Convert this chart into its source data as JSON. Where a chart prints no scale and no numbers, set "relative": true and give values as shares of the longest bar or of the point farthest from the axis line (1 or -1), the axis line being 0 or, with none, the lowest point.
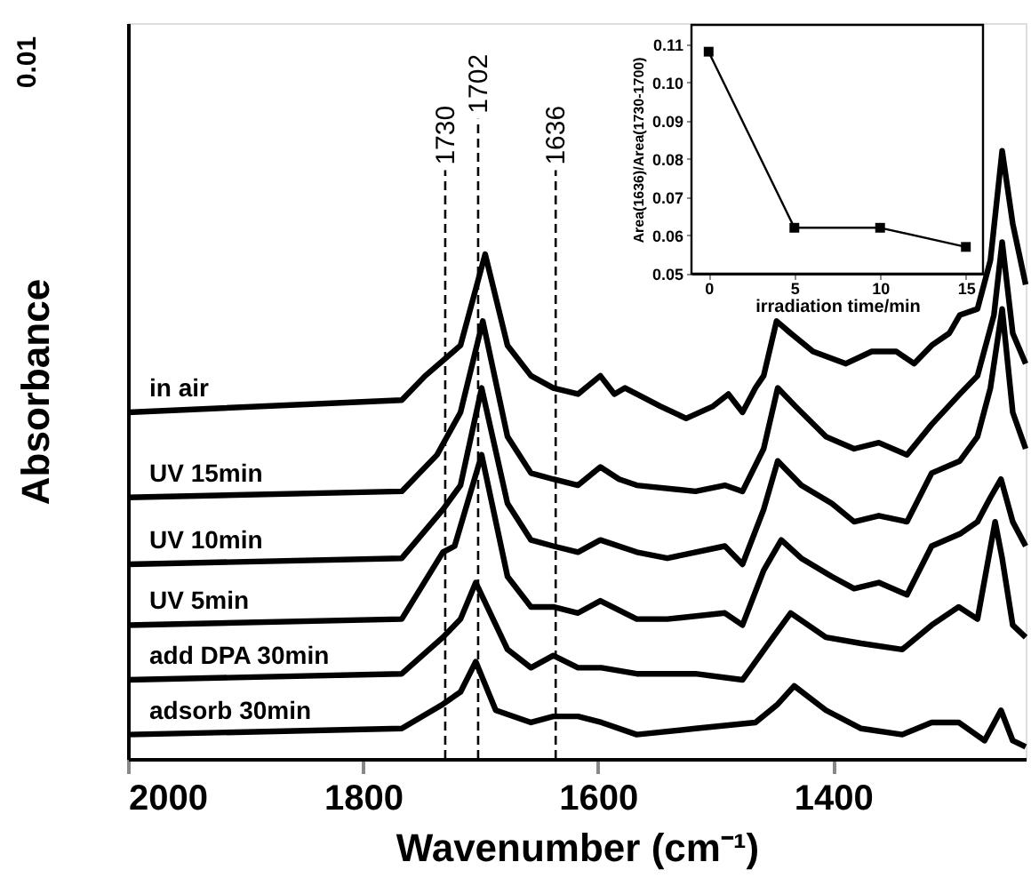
{
  "chart_data": [
    {
      "type": "line",
      "relative": true,
      "xlabel": "Wavenumber (cm⁻¹)",
      "ylabel": "Absorbance",
      "annotations": [
        "0.01"
      ],
      "xlim": [
        2000,
        1236
      ],
      "xticks": [
        2000,
        1800,
        1600,
        1400
      ],
      "ref_lines": [
        {
          "axis": "x",
          "value": 1730,
          "label": "1730",
          "line_style": "dashed"
        },
        {
          "axis": "x",
          "value": 1702,
          "label": "1702",
          "line_style": "dashed"
        },
        {
          "axis": "x",
          "value": 1636,
          "label": "1636",
          "line_style": "dashed"
        }
      ],
      "series": [
        {
          "name": "in air",
          "color": "#000000",
          "x": [
            2000,
            1767,
            1747,
            1717,
            1696,
            1677,
            1657,
            1638,
            1617,
            1598,
            1586,
            1577,
            1567,
            1547,
            1525,
            1502,
            1489,
            1477,
            1466,
            1459,
            1448,
            1436,
            1417,
            1389,
            1367,
            1346,
            1331,
            1316,
            1301,
            1292,
            1277,
            1266,
            1256,
            1247,
            1236
          ],
          "values": [
            0.57,
            0.59,
            0.63,
            0.68,
            0.83,
            0.68,
            0.63,
            0.61,
            0.6,
            0.63,
            0.6,
            0.61,
            0.6,
            0.58,
            0.56,
            0.58,
            0.6,
            0.57,
            0.61,
            0.63,
            0.72,
            0.7,
            0.67,
            0.65,
            0.67,
            0.67,
            0.65,
            0.68,
            0.7,
            0.73,
            0.74,
            0.82,
            1.0,
            0.88,
            0.78
          ]
        },
        {
          "name": "UV 15min",
          "color": "#000000",
          "x": [
            2000,
            1767,
            1737,
            1717,
            1698,
            1677,
            1657,
            1638,
            1617,
            1598,
            1582,
            1567,
            1517,
            1492,
            1477,
            1459,
            1447,
            1432,
            1406,
            1382,
            1361,
            1337,
            1316,
            1292,
            1277,
            1263,
            1256,
            1247,
            1236
          ],
          "values": [
            0.43,
            0.44,
            0.5,
            0.57,
            0.72,
            0.53,
            0.47,
            0.46,
            0.45,
            0.48,
            0.46,
            0.45,
            0.44,
            0.45,
            0.44,
            0.51,
            0.61,
            0.58,
            0.53,
            0.51,
            0.52,
            0.5,
            0.55,
            0.6,
            0.63,
            0.73,
            0.85,
            0.7,
            0.65
          ]
        },
        {
          "name": "UV 10min",
          "color": "#000000",
          "x": [
            2000,
            1767,
            1732,
            1717,
            1699,
            1677,
            1657,
            1638,
            1617,
            1598,
            1567,
            1541,
            1492,
            1477,
            1459,
            1447,
            1427,
            1401,
            1382,
            1361,
            1337,
            1316,
            1292,
            1277,
            1266,
            1256,
            1247,
            1236
          ],
          "values": [
            0.32,
            0.33,
            0.41,
            0.45,
            0.61,
            0.42,
            0.36,
            0.35,
            0.34,
            0.36,
            0.34,
            0.33,
            0.35,
            0.32,
            0.41,
            0.49,
            0.45,
            0.42,
            0.39,
            0.4,
            0.39,
            0.47,
            0.49,
            0.53,
            0.61,
            0.74,
            0.57,
            0.51
          ]
        },
        {
          "name": "UV 5min",
          "color": "#000000",
          "x": [
            2000,
            1767,
            1732,
            1722,
            1699,
            1677,
            1657,
            1638,
            1617,
            1598,
            1567,
            1541,
            1492,
            1477,
            1459,
            1444,
            1427,
            1401,
            1382,
            1361,
            1337,
            1316,
            1292,
            1277,
            1266,
            1257,
            1247,
            1236
          ],
          "values": [
            0.22,
            0.23,
            0.34,
            0.35,
            0.5,
            0.3,
            0.25,
            0.25,
            0.24,
            0.26,
            0.23,
            0.23,
            0.24,
            0.22,
            0.31,
            0.36,
            0.33,
            0.3,
            0.28,
            0.29,
            0.27,
            0.35,
            0.37,
            0.39,
            0.43,
            0.46,
            0.39,
            0.35
          ]
        },
        {
          "name": "add DPA 30min",
          "color": "#000000",
          "x": [
            2000,
            1767,
            1732,
            1717,
            1704,
            1677,
            1657,
            1638,
            1617,
            1597,
            1567,
            1517,
            1477,
            1451,
            1436,
            1406,
            1376,
            1341,
            1316,
            1293,
            1277,
            1262,
            1256,
            1247,
            1236
          ],
          "values": [
            0.13,
            0.14,
            0.2,
            0.23,
            0.29,
            0.18,
            0.15,
            0.17,
            0.15,
            0.15,
            0.14,
            0.14,
            0.13,
            0.2,
            0.24,
            0.2,
            0.19,
            0.18,
            0.22,
            0.25,
            0.23,
            0.39,
            0.33,
            0.22,
            0.2
          ]
        },
        {
          "name": "adsorb 30min",
          "color": "#000000",
          "x": [
            2000,
            1767,
            1732,
            1717,
            1704,
            1687,
            1657,
            1638,
            1617,
            1597,
            1567,
            1517,
            1466,
            1447,
            1433,
            1406,
            1376,
            1341,
            1316,
            1293,
            1271,
            1257,
            1247,
            1236
          ],
          "values": [
            0.04,
            0.05,
            0.09,
            0.11,
            0.16,
            0.08,
            0.06,
            0.07,
            0.07,
            0.06,
            0.04,
            0.05,
            0.06,
            0.09,
            0.12,
            0.08,
            0.05,
            0.04,
            0.06,
            0.06,
            0.03,
            0.08,
            0.03,
            0.02
          ]
        }
      ]
    },
    {
      "type": "line",
      "xlabel": "irradiation time/min",
      "ylabel": "Area(1636)/Area(1730-1700)",
      "marker": "square",
      "xlim": [
        -1,
        16
      ],
      "xticks": [
        0,
        5,
        10,
        15
      ],
      "ylim": [
        0.05,
        0.115
      ],
      "yticks": [
        0.05,
        0.06,
        0.07,
        0.08,
        0.09,
        {
          "value": 0.1,
          "label": "0.10"
        },
        0.11
      ],
      "series": [
        {
          "color": "#000000",
          "x": [
            0,
            5,
            10,
            15
          ],
          "values": [
            0.108,
            0.062,
            0.062,
            0.057
          ]
        }
      ]
    }
  ]
}
